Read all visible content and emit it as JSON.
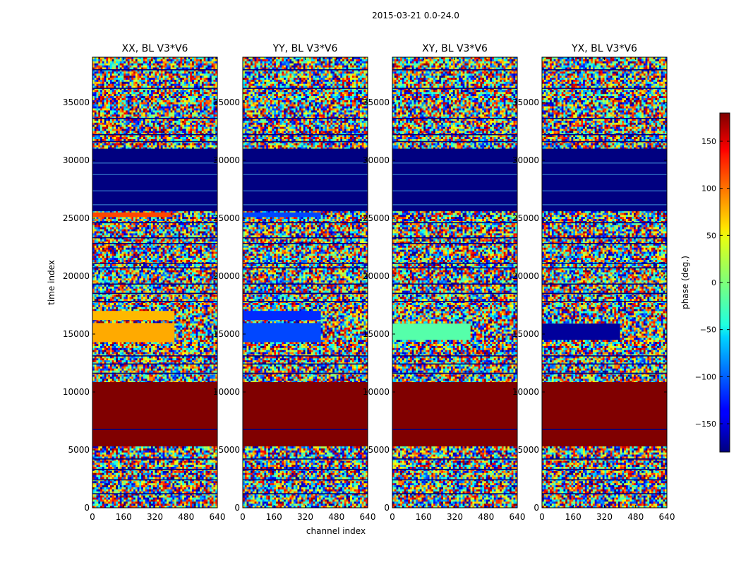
{
  "chart_data": {
    "type": "heatmap",
    "suptitle": "2015-03-21 0.0-24.0",
    "xlabel": "channel index",
    "ylabel": "time index",
    "colorbar_label": "phase (deg.)",
    "colorbar_range": [
      -180,
      180
    ],
    "colorbar_ticks": [
      "150",
      "100",
      "50",
      "0",
      "−50",
      "−100",
      "−150"
    ],
    "colorbar_tick_values": [
      150,
      100,
      50,
      0,
      -50,
      -100,
      -150
    ],
    "colormap": "jet",
    "xlim": [
      0,
      640
    ],
    "ylim": [
      0,
      38900
    ],
    "x_ticks": [
      "0",
      "160",
      "320",
      "480",
      "640"
    ],
    "y_ticks": [
      "0",
      "5000",
      "10000",
      "15000",
      "20000",
      "25000",
      "30000",
      "35000"
    ],
    "panels": [
      {
        "title": "XX, BL V3*V6",
        "bands": [
          {
            "t": [
              5300,
              10850
            ],
            "phase": 180,
            "kind": "solid"
          },
          {
            "t": [
              14300,
              15950
            ],
            "phase": 75,
            "kind": "solid_ch",
            "ch_end": 420
          },
          {
            "t": [
              16200,
              17000
            ],
            "phase": 70,
            "kind": "solid_ch",
            "ch_end": 420
          },
          {
            "t": [
              25100,
              25500
            ],
            "phase": 110,
            "kind": "solid_ch",
            "ch_end": 400
          },
          {
            "t": [
              25600,
              31000
            ],
            "phase": -180,
            "kind": "solid"
          }
        ]
      },
      {
        "title": "YY, BL V3*V6",
        "bands": [
          {
            "t": [
              5300,
              10850
            ],
            "phase": 180,
            "kind": "solid"
          },
          {
            "t": [
              14300,
              15950
            ],
            "phase": -110,
            "kind": "solid_ch",
            "ch_end": 400
          },
          {
            "t": [
              16200,
              17000
            ],
            "phase": -120,
            "kind": "solid_ch",
            "ch_end": 400
          },
          {
            "t": [
              25100,
              25500
            ],
            "phase": -110,
            "kind": "solid_ch",
            "ch_end": 400
          },
          {
            "t": [
              25600,
              31000
            ],
            "phase": -180,
            "kind": "solid"
          }
        ]
      },
      {
        "title": "XY, BL V3*V6",
        "bands": [
          {
            "t": [
              5300,
              10850
            ],
            "phase": 180,
            "kind": "solid"
          },
          {
            "t": [
              14500,
              15900
            ],
            "phase": -15,
            "kind": "solid_ch",
            "ch_end": 400
          },
          {
            "t": [
              25600,
              31000
            ],
            "phase": -180,
            "kind": "solid"
          }
        ]
      },
      {
        "title": "YX, BL V3*V6",
        "bands": [
          {
            "t": [
              5300,
              10850
            ],
            "phase": 180,
            "kind": "solid"
          },
          {
            "t": [
              14500,
              15900
            ],
            "phase": -170,
            "kind": "solid_ch",
            "ch_end": 400
          },
          {
            "t": [
              25600,
              31000
            ],
            "phase": -180,
            "kind": "solid"
          }
        ]
      }
    ]
  }
}
